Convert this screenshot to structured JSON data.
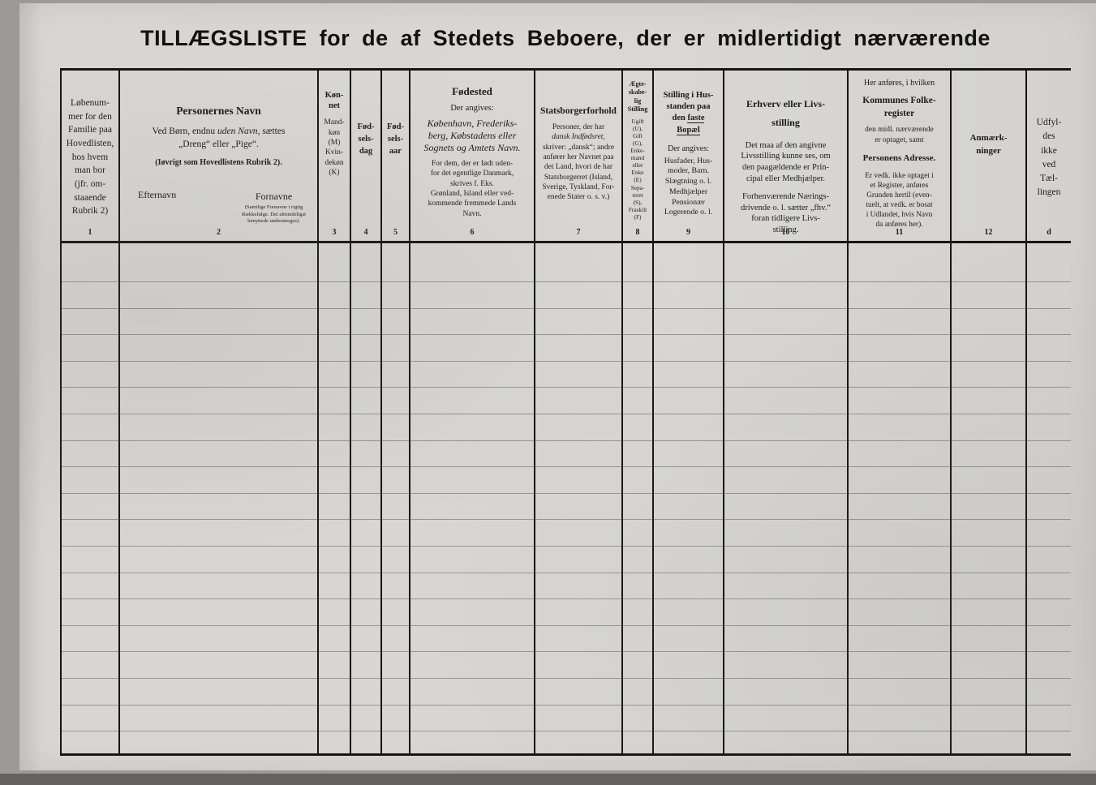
{
  "page": {
    "title": "TILLÆGSLISTE for de af Stedets Beboere, der er midlertidigt nærværende"
  },
  "columns": {
    "c1": {
      "text": "Løbenum-\nmer for den\nFamilie paa\nHovedlisten,\nhos hvem\nman bor\n(jfr. om-\nstaaende\nRubrik 2)",
      "num": "1"
    },
    "c2": {
      "heading": "Personernes Navn",
      "line_pre": "Ved Børn, endnu ",
      "line_italic": "uden Navn",
      "line_post": ", sættes",
      "line_2": "„Dreng“ eller „Pige“.",
      "line_3": "(Iøvrigt som Hovedlistens Rubrik 2).",
      "efternavn": "Efternavn",
      "fornavne": "Fornavne",
      "fornavne_note": "(Samtlige Fornavne i rigtig\nRækkefølge. Det almindeligst\nbenyttede understreges).",
      "num": "2"
    },
    "c3": {
      "heading": "Køn-\nnet",
      "sub": "Mand-\nkøn\n(M)\nKvin-\ndekøn\n(K)",
      "num": "3"
    },
    "c4": {
      "heading": "Fød-\nsels-\ndag",
      "num": "4"
    },
    "c5": {
      "heading": "Fød-\nsels-\naar",
      "num": "5"
    },
    "c6": {
      "heading": "Fødested",
      "sub_1": "Der angives:",
      "italic_block": "København, Frederiks-\nberg, Købstadens eller\nSognets og Amtets Navn.",
      "sub_2": "For dem, der er født uden-\nfor det egentlige Danmark,\nskrives f. Eks.\nGrønland, Island eller ved-\nkommende fremmede Lands\nNavn.",
      "num": "6"
    },
    "c7": {
      "heading": "Statsborgerforhold",
      "sub_pre": "Personer, der har",
      "sub_italic": "dansk Indfødsret,",
      "sub_rest": "skriver: „dansk“; andre\nanfører her Navnet paa\ndet Land, hvori de har\nStatsborgerret (Island,\nSverige, Tyskland, For-\nenede Stater o. s. v.)",
      "num": "7"
    },
    "c8": {
      "heading": "Ægte-\nskabe-\nlig\nStilling",
      "sub": "Ugift\n(U),\nGift\n(G),\nEnke-\nmand\neller\nEnke\n(E)\nSepa-\nreret\n(S),\nFraskilt\n(F)",
      "num": "8"
    },
    "c9": {
      "heading_1": "Stilling i Hus-\nstanden paa",
      "heading_2_pre": "den ",
      "heading_2_underline": "faste",
      "heading_3_underline": "Bopæl",
      "sub_1": "Der angives:",
      "sub_2": "Husfader, Hus-\nmoder, Barn.\nSlægtning o. l.\nMedhjælper\nPensionær\nLogerende o. l.",
      "num": "9"
    },
    "c10": {
      "heading": "Erhverv eller Livs-\nstilling",
      "sub_1": "Det maa af den angivne\nLivsstilling kunne ses, om\nden paagældende er Prin-\ncipal eller Medhjælper.",
      "sub_2": "Forhenværende Nærings-\ndrivende o. l. sætter „fhv.“\nforan tidligere Livs-\nstilling.",
      "num": "10"
    },
    "c11": {
      "pre": "Her anføres, i hvilken",
      "heading_1": "Kommunes Folke-\nregister",
      "mid": "den midl. nærværende\ner optaget, samt",
      "heading_2": "Personens Adresse.",
      "sub": "Er vedk. ikke optaget i\net Register, anføres\nGrunden hertil (even-\ntuelt, at vedk. er bosat\ni Udlandet, hvis Navn\nda anføres her).",
      "num": "11"
    },
    "c12": {
      "heading": "Anmærk-\nninger",
      "num": "12"
    },
    "c13": {
      "text": "Udfyl-\ndes\nikke\nved\nTæl-\nlingen",
      "num": "d"
    }
  },
  "body": {
    "ruling_lines": 18,
    "first_row_height": 47,
    "row_height": 32.6
  },
  "colors": {
    "paper": "#d7d6d3",
    "ink": "#161616",
    "faint_rule": "#7c7b78"
  }
}
